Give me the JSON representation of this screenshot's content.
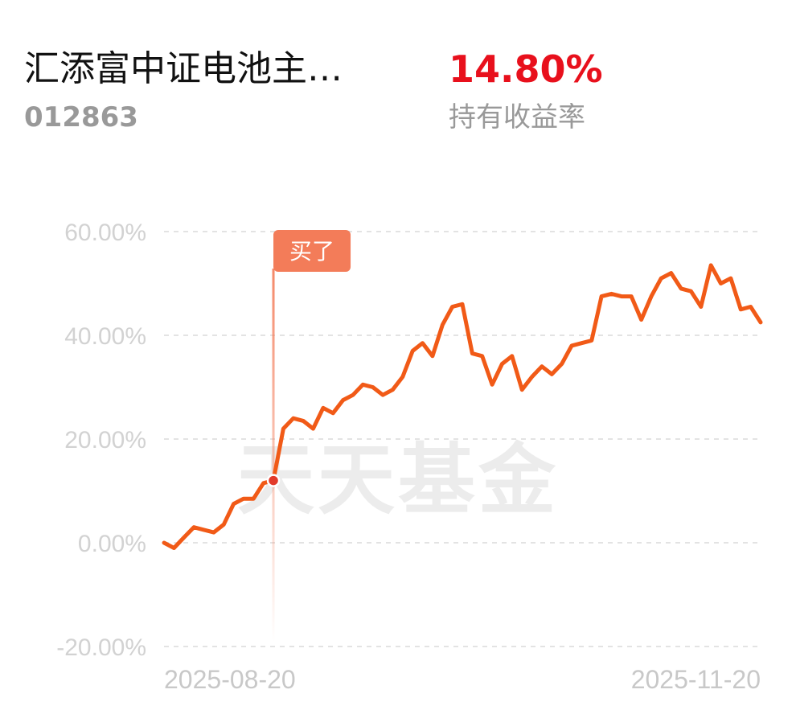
{
  "fund": {
    "name": "汇添富中证电池主…",
    "code": "012863"
  },
  "holding": {
    "return_value": "14.80%",
    "return_label": "持有收益率"
  },
  "watermark": "天天基金",
  "colors": {
    "line": "#f15a17",
    "marker": "#f37c59",
    "return": "#e8101c"
  },
  "chart_data": {
    "type": "line",
    "title": "",
    "xlabel": "",
    "ylabel": "",
    "ylim": [
      -20,
      60
    ],
    "y_ticks": [
      60,
      40,
      20,
      0,
      -20
    ],
    "y_tick_labels": [
      "60.00%",
      "40.00%",
      "20.00%",
      "0.00%",
      "-20.00%"
    ],
    "x_range": [
      "2025-08-20",
      "2025-11-20"
    ],
    "x_tick_labels": [
      "2025-08-20",
      "2025-11-20"
    ],
    "grid": true,
    "buy_marker": {
      "label": "买了",
      "index": 11
    },
    "series": [
      {
        "values": [
          0.0,
          -1.0,
          1.0,
          3.0,
          2.5,
          2.0,
          3.5,
          7.5,
          8.5,
          8.5,
          11.5,
          12.0,
          22.0,
          24.0,
          23.5,
          22.0,
          26.0,
          25.0,
          27.5,
          28.5,
          30.5,
          30.0,
          28.5,
          29.5,
          32.0,
          37.0,
          38.5,
          36.0,
          42.0,
          45.5,
          46.0,
          36.5,
          36.0,
          30.5,
          34.5,
          36.0,
          29.5,
          32.0,
          34.0,
          32.5,
          34.5,
          38.0,
          38.5,
          39.0,
          47.5,
          48.0,
          47.5,
          47.5,
          43.0,
          47.5,
          51.0,
          52.0,
          49.0,
          48.5,
          45.5,
          53.5,
          50.0,
          51.0,
          45.0,
          45.5,
          42.5
        ]
      }
    ]
  }
}
